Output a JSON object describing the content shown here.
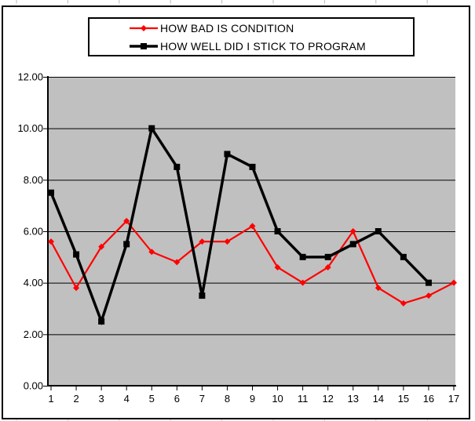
{
  "frame": {
    "background": "#ffffff",
    "border_color": "#000000"
  },
  "chart_data": {
    "type": "line",
    "title": "",
    "xlabel": "",
    "ylabel": "",
    "categories": [
      "1",
      "2",
      "3",
      "4",
      "5",
      "6",
      "7",
      "8",
      "9",
      "10",
      "11",
      "12",
      "13",
      "14",
      "15",
      "16",
      "17"
    ],
    "y_tick_labels": [
      "12.00",
      "10.00",
      "8.00",
      "6.00",
      "4.00",
      "2.00",
      "0.00"
    ],
    "ylim": [
      0,
      12
    ],
    "y_tick_step": 2,
    "grid": true,
    "plot_bg": "#c0c0c0",
    "gridline_color": "#000000",
    "legend_position": "top-center",
    "series": [
      {
        "name": "HOW BAD IS CONDITION",
        "color": "#ff0000",
        "marker": "diamond",
        "line_width": 2.2,
        "values": [
          5.6,
          3.8,
          5.4,
          6.4,
          5.2,
          4.8,
          5.6,
          5.6,
          6.2,
          4.6,
          4.0,
          4.6,
          6.0,
          3.8,
          3.2,
          3.5,
          4.0
        ]
      },
      {
        "name": "HOW WELL DID I STICK TO PROGRAM",
        "color": "#000000",
        "marker": "square",
        "line_width": 3.5,
        "values": [
          7.5,
          5.1,
          2.5,
          5.5,
          10.0,
          8.5,
          3.5,
          9.0,
          8.5,
          6.0,
          5.0,
          5.0,
          5.5,
          6.0,
          5.0,
          4.0
        ]
      }
    ]
  }
}
